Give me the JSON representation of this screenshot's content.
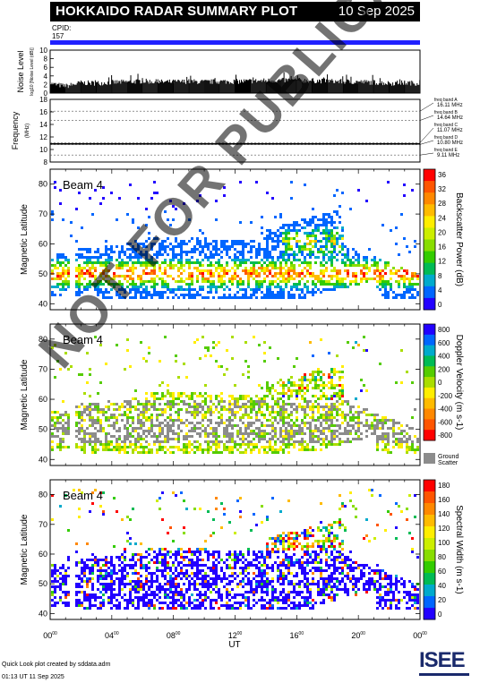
{
  "header": {
    "title": "HOKKAIDO RADAR SUMMARY PLOT",
    "date": "10 Sep 2025",
    "cpid_label": "CPID:",
    "cpid_value": "157"
  },
  "footer": {
    "line1": "Quick Look plot created by sddata.adm",
    "line2": "01:13 UT 11 Sep 2025"
  },
  "logo_text": "ISEE",
  "watermark": "NOT FOR PUBLICATION",
  "chart_data": [
    {
      "type": "bar",
      "panel": "noise",
      "ylabel_main": "Noise Level",
      "ylabel_sub": "log10 [Noise Level (dB)]",
      "yticks": [
        "10",
        "8",
        "6",
        "4",
        "2",
        "0"
      ],
      "ylim": [
        0,
        10
      ],
      "description": "noise level vs UT",
      "x_range_hours": [
        0,
        24
      ],
      "x": [
        0,
        1,
        2,
        3,
        4,
        5,
        6,
        7,
        8,
        9,
        10,
        11,
        12,
        13,
        14,
        15,
        16,
        17,
        18,
        19,
        20,
        21,
        22,
        23,
        24
      ],
      "values": [
        2.2,
        1.6,
        2.4,
        2.3,
        2.5,
        2.6,
        2.8,
        2.6,
        2.6,
        2.7,
        2.6,
        2.7,
        2.7,
        2.8,
        2.9,
        3.0,
        3.0,
        2.9,
        2.8,
        2.7,
        2.6,
        2.5,
        2.3,
        2.4,
        2.3
      ]
    },
    {
      "type": "scatter",
      "panel": "frequency",
      "ylabel_main": "Frequency",
      "ylabel_sub": "(MHz)",
      "yticks": [
        "18",
        "16",
        "14",
        "12",
        "10",
        "8"
      ],
      "ylim": [
        8,
        18
      ],
      "x": [
        0,
        24
      ],
      "values": [
        10.9,
        10.9
      ],
      "band_labels": [
        "freq band A",
        "16.11 MHz",
        "freq band B",
        "14.64 MHz",
        "freq band C",
        "11.07 MHz",
        "freq band D",
        "10.80 MHz",
        "freq band E",
        "9.11 MHz"
      ],
      "bands_mhz": [
        16.11,
        14.64,
        11.07,
        10.8,
        9.11
      ]
    },
    {
      "type": "heatmap",
      "panel": "power",
      "beam_label": "Beam  4",
      "ylabel": "Magnetic Latitude",
      "yticks": [
        "80",
        "70",
        "60",
        "50",
        "40"
      ],
      "ylim": [
        38,
        85
      ],
      "colorbar_label": "Backscatter Power (dB)",
      "colorbar_ticks": [
        "36",
        "32",
        "28",
        "24",
        "20",
        "16",
        "12",
        "8",
        "4",
        "0"
      ],
      "colorbar_colors": [
        "#ff0000",
        "#ff5500",
        "#ff8800",
        "#ffbb00",
        "#ffee00",
        "#ccee00",
        "#88dd00",
        "#33cc00",
        "#00bb55",
        "#00aacc",
        "#0066ff",
        "#2200ff"
      ]
    },
    {
      "type": "heatmap",
      "panel": "velocity",
      "beam_label": "Beam  4",
      "ylabel": "Magnetic Latitude",
      "yticks": [
        "80",
        "70",
        "60",
        "50",
        "40"
      ],
      "ylim": [
        38,
        85
      ],
      "colorbar_label": "Doppler Velocity (m s-1)",
      "colorbar_ticks": [
        "800",
        "600",
        "400",
        "200",
        "0",
        "-200",
        "-400",
        "-600",
        "-800"
      ],
      "colorbar_colors": [
        "#2200ff",
        "#0066ff",
        "#00aacc",
        "#00bb55",
        "#55cc00",
        "#aadd00",
        "#ffee00",
        "#ffbb00",
        "#ff8800",
        "#ff5500",
        "#ff0000"
      ],
      "ground_scatter_label": "Ground Scatter",
      "ground_scatter_color": "#8c8c8c"
    },
    {
      "type": "heatmap",
      "panel": "width",
      "beam_label": "Beam  4",
      "ylabel": "Magnetic Latitude",
      "yticks": [
        "80",
        "70",
        "60",
        "50",
        "40"
      ],
      "ylim": [
        38,
        85
      ],
      "colorbar_label": "Spectral Width (m s-1)",
      "colorbar_ticks": [
        "180",
        "160",
        "140",
        "120",
        "100",
        "80",
        "60",
        "40",
        "20",
        "0"
      ],
      "colorbar_colors": [
        "#ff0000",
        "#ff5500",
        "#ff8800",
        "#ffbb00",
        "#ffee00",
        "#ccee00",
        "#88dd00",
        "#33cc00",
        "#00bb55",
        "#00aacc",
        "#0066ff",
        "#2200ff"
      ],
      "xticks": [
        "00",
        "04",
        "08",
        "12",
        "16",
        "20",
        "00"
      ],
      "xtick_sup": "00",
      "xlabel": "UT"
    }
  ]
}
